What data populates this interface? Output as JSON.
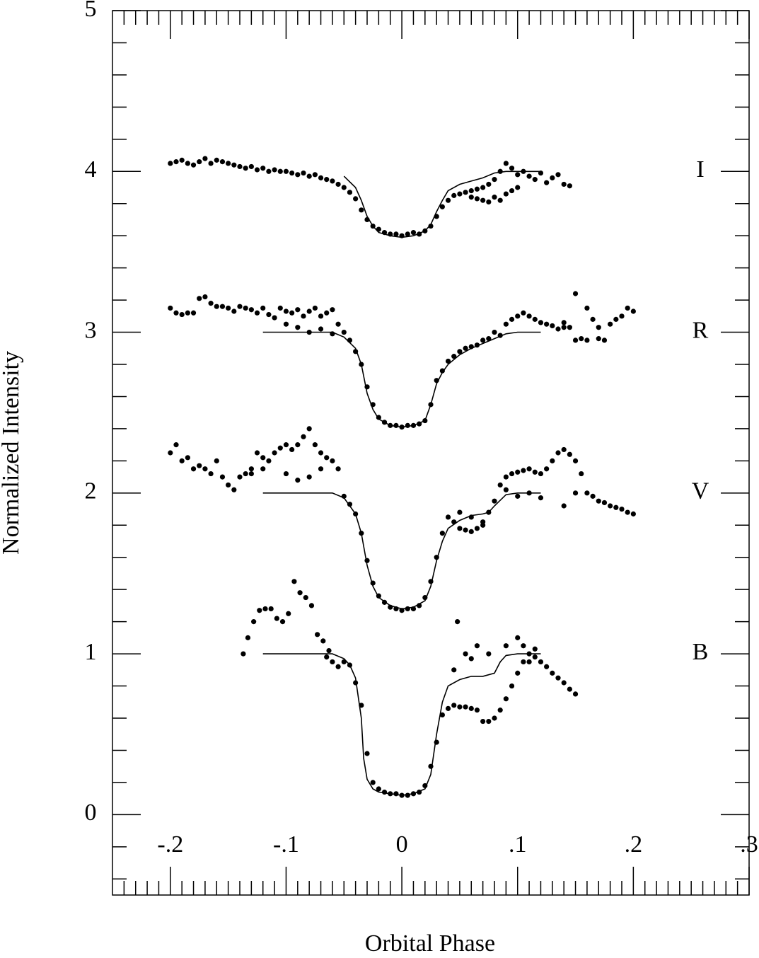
{
  "chart_data": {
    "type": "scatter",
    "xlabel": "Orbital Phase",
    "ylabel": "Normalized Intensity",
    "color": "#000000",
    "xlim": [
      -0.25,
      0.3
    ],
    "ylim": [
      -0.5,
      5
    ],
    "xticks": [
      {
        "value": -0.2,
        "label": "-.2"
      },
      {
        "value": -0.1,
        "label": "-.1"
      },
      0,
      {
        "value": 0.1,
        "label": ".1"
      },
      {
        "value": 0.2,
        "label": ".2"
      },
      {
        "value": 0.3,
        "label": ".3"
      }
    ],
    "yticks": [
      0,
      1,
      2,
      3,
      4,
      5
    ],
    "xminorticks": [
      -0.24,
      -0.23,
      -0.22,
      -0.21,
      -0.19,
      -0.18,
      -0.17,
      -0.16,
      -0.15,
      -0.14,
      -0.13,
      -0.12,
      -0.11,
      -0.09,
      -0.08,
      -0.07,
      -0.06,
      -0.05,
      -0.04,
      -0.03,
      -0.02,
      -0.01,
      0.01,
      0.02,
      0.03,
      0.04,
      0.05,
      0.06,
      0.07,
      0.08,
      0.09,
      0.11,
      0.12,
      0.13,
      0.14,
      0.15,
      0.16,
      0.17,
      0.18,
      0.19,
      0.21,
      0.22,
      0.23,
      0.24,
      0.25,
      0.26,
      0.27,
      0.28,
      0.29
    ],
    "yminorticks": [
      -0.4,
      -0.2,
      0.2,
      0.4,
      0.6,
      0.8,
      1.2,
      1.4,
      1.6,
      1.8,
      2.2,
      2.4,
      2.6,
      2.8,
      3.2,
      3.4,
      3.6,
      3.8,
      4.2,
      4.4,
      4.6,
      4.8
    ],
    "series": [
      {
        "name": "I",
        "x": [
          -0.2,
          -0.195,
          -0.19,
          -0.185,
          -0.18,
          -0.175,
          -0.17,
          -0.165,
          -0.16,
          -0.155,
          -0.15,
          -0.145,
          -0.14,
          -0.135,
          -0.13,
          -0.125,
          -0.12,
          -0.115,
          -0.11,
          -0.105,
          -0.1,
          -0.095,
          -0.09,
          -0.085,
          -0.08,
          -0.075,
          -0.07,
          -0.065,
          -0.06,
          -0.055,
          -0.05,
          -0.045,
          -0.04,
          -0.035,
          -0.03,
          -0.025,
          -0.02,
          -0.015,
          -0.01,
          -0.005,
          0,
          0.005,
          0.01,
          0.015,
          0.02,
          0.025,
          0.03,
          0.035,
          0.04,
          0.045,
          0.05,
          0.055,
          0.06,
          0.065,
          0.07,
          0.075,
          0.08,
          0.085,
          0.09,
          0.095,
          0.1,
          0.105,
          0.11,
          0.115,
          0.12,
          0.125,
          0.13,
          0.135,
          0.14,
          0.145,
          0.06,
          0.065,
          0.07,
          0.075,
          0.08,
          0.085,
          0.09,
          0.095,
          0.1
        ],
        "values": [
          4.05,
          4.06,
          4.07,
          4.05,
          4.04,
          4.06,
          4.08,
          4.05,
          4.07,
          4.06,
          4.05,
          4.04,
          4.03,
          4.02,
          4.03,
          4.01,
          4.02,
          4.0,
          4.01,
          4.0,
          4.0,
          3.99,
          3.98,
          3.99,
          3.97,
          3.98,
          3.96,
          3.95,
          3.94,
          3.92,
          3.9,
          3.87,
          3.83,
          3.76,
          3.7,
          3.66,
          3.64,
          3.62,
          3.61,
          3.61,
          3.6,
          3.61,
          3.62,
          3.61,
          3.63,
          3.66,
          3.72,
          3.78,
          3.82,
          3.85,
          3.86,
          3.87,
          3.88,
          3.89,
          3.9,
          3.92,
          3.95,
          4.0,
          4.05,
          4.02,
          3.98,
          4.0,
          3.97,
          3.95,
          3.99,
          3.93,
          3.96,
          3.98,
          3.92,
          3.91,
          3.84,
          3.83,
          3.82,
          3.81,
          3.84,
          3.82,
          3.86,
          3.88,
          3.9
        ],
        "model": {
          "x": [
            -0.05,
            -0.04,
            -0.035,
            -0.03,
            -0.025,
            -0.02,
            -0.01,
            0,
            0.01,
            0.02,
            0.025,
            0.03,
            0.035,
            0.04,
            0.05,
            0.06,
            0.07,
            0.08,
            0.09,
            0.1,
            0.12
          ],
          "values": [
            3.97,
            3.9,
            3.82,
            3.72,
            3.66,
            3.62,
            3.6,
            3.59,
            3.6,
            3.63,
            3.67,
            3.75,
            3.82,
            3.88,
            3.92,
            3.94,
            3.96,
            3.99,
            4.0,
            4.0,
            4.0
          ]
        }
      },
      {
        "name": "R",
        "x": [
          -0.2,
          -0.195,
          -0.19,
          -0.185,
          -0.18,
          -0.175,
          -0.17,
          -0.165,
          -0.16,
          -0.155,
          -0.15,
          -0.145,
          -0.14,
          -0.135,
          -0.13,
          -0.125,
          -0.12,
          -0.115,
          -0.11,
          -0.105,
          -0.1,
          -0.095,
          -0.09,
          -0.085,
          -0.08,
          -0.075,
          -0.07,
          -0.065,
          -0.06,
          -0.055,
          -0.05,
          -0.045,
          -0.04,
          -0.035,
          -0.03,
          -0.025,
          -0.02,
          -0.015,
          -0.01,
          -0.005,
          0,
          0.005,
          0.01,
          0.015,
          0.02,
          0.025,
          0.03,
          0.035,
          0.04,
          0.045,
          0.05,
          0.055,
          0.06,
          0.065,
          0.07,
          0.075,
          0.08,
          0.085,
          0.09,
          0.095,
          0.1,
          0.105,
          0.11,
          0.115,
          0.12,
          0.125,
          0.13,
          0.135,
          0.14,
          0.145,
          0.15,
          0.155,
          0.16,
          0.165,
          0.17,
          0.175,
          0.18,
          0.185,
          0.19,
          0.195,
          0.2,
          -0.1,
          -0.09,
          -0.08,
          -0.07,
          -0.06,
          0.15,
          0.16,
          0.17,
          0.14
        ],
        "values": [
          3.15,
          3.12,
          3.11,
          3.12,
          3.12,
          3.21,
          3.22,
          3.18,
          3.16,
          3.16,
          3.15,
          3.13,
          3.16,
          3.15,
          3.14,
          3.12,
          3.15,
          3.11,
          3.09,
          3.15,
          3.13,
          3.12,
          3.14,
          3.1,
          3.13,
          3.15,
          3.1,
          3.12,
          3.14,
          3.05,
          3.0,
          2.95,
          2.88,
          2.8,
          2.66,
          2.55,
          2.47,
          2.44,
          2.42,
          2.42,
          2.41,
          2.42,
          2.42,
          2.43,
          2.45,
          2.55,
          2.7,
          2.76,
          2.82,
          2.85,
          2.88,
          2.9,
          2.91,
          2.92,
          2.95,
          2.96,
          3.0,
          2.98,
          3.05,
          3.08,
          3.1,
          3.12,
          3.1,
          3.08,
          3.06,
          3.05,
          3.04,
          3.02,
          3.06,
          3.03,
          3.24,
          2.96,
          3.15,
          3.08,
          3.03,
          2.95,
          3.05,
          3.08,
          3.1,
          3.15,
          3.13,
          3.05,
          3.03,
          3.0,
          3.02,
          2.99,
          2.95,
          2.95,
          2.96,
          3.03
        ],
        "model": {
          "x": [
            -0.12,
            -0.06,
            -0.05,
            -0.04,
            -0.035,
            -0.03,
            -0.025,
            -0.02,
            -0.01,
            0,
            0.01,
            0.02,
            0.025,
            0.03,
            0.035,
            0.04,
            0.05,
            0.06,
            0.07,
            0.08,
            0.09,
            0.1,
            0.12
          ],
          "values": [
            3.0,
            3.0,
            2.97,
            2.9,
            2.8,
            2.62,
            2.52,
            2.46,
            2.42,
            2.41,
            2.42,
            2.45,
            2.55,
            2.68,
            2.75,
            2.8,
            2.86,
            2.9,
            2.93,
            2.96,
            2.99,
            3.0,
            3.0
          ]
        }
      },
      {
        "name": "V",
        "x": [
          -0.2,
          -0.195,
          -0.19,
          -0.185,
          -0.18,
          -0.175,
          -0.17,
          -0.165,
          -0.16,
          -0.155,
          -0.15,
          -0.145,
          -0.14,
          -0.135,
          -0.13,
          -0.125,
          -0.12,
          -0.115,
          -0.11,
          -0.105,
          -0.1,
          -0.095,
          -0.09,
          -0.085,
          -0.08,
          -0.075,
          -0.07,
          -0.065,
          -0.06,
          -0.055,
          -0.05,
          -0.045,
          -0.04,
          -0.035,
          -0.03,
          -0.025,
          -0.02,
          -0.015,
          -0.01,
          -0.005,
          0,
          0.005,
          0.01,
          0.015,
          0.02,
          0.025,
          0.03,
          0.035,
          0.04,
          0.045,
          0.05,
          0.055,
          0.06,
          0.065,
          0.07,
          0.075,
          0.08,
          0.085,
          0.09,
          0.095,
          0.1,
          0.105,
          0.11,
          0.115,
          0.12,
          0.125,
          0.13,
          0.135,
          0.14,
          0.145,
          0.15,
          0.155,
          0.16,
          0.165,
          0.17,
          0.175,
          0.18,
          0.185,
          0.19,
          0.195,
          0.2,
          -0.13,
          -0.12,
          -0.1,
          -0.09,
          -0.08,
          -0.07,
          0.05,
          0.06,
          0.07,
          0.09,
          0.1,
          0.11,
          0.12,
          0.14,
          0.15
        ],
        "values": [
          2.25,
          2.3,
          2.2,
          2.22,
          2.15,
          2.17,
          2.15,
          2.12,
          2.2,
          2.1,
          2.05,
          2.02,
          2.1,
          2.12,
          2.15,
          2.25,
          2.22,
          2.2,
          2.25,
          2.28,
          2.3,
          2.27,
          2.3,
          2.35,
          2.4,
          2.3,
          2.25,
          2.22,
          2.2,
          2.15,
          1.98,
          1.93,
          1.87,
          1.75,
          1.58,
          1.44,
          1.36,
          1.32,
          1.29,
          1.28,
          1.27,
          1.28,
          1.28,
          1.3,
          1.35,
          1.45,
          1.6,
          1.75,
          1.85,
          1.82,
          1.78,
          1.77,
          1.76,
          1.78,
          1.8,
          1.88,
          1.95,
          2.05,
          2.1,
          2.12,
          2.13,
          2.14,
          2.15,
          2.13,
          2.12,
          2.15,
          2.2,
          2.25,
          2.27,
          2.24,
          2.2,
          2.12,
          2.0,
          1.98,
          1.95,
          1.94,
          1.92,
          1.91,
          1.9,
          1.88,
          1.87,
          2.12,
          2.15,
          2.12,
          2.08,
          2.1,
          2.15,
          1.88,
          1.85,
          1.82,
          2.02,
          1.98,
          2.0,
          1.97,
          1.92,
          2.0
        ],
        "model": {
          "x": [
            -0.12,
            -0.06,
            -0.05,
            -0.045,
            -0.04,
            -0.035,
            -0.03,
            -0.025,
            -0.02,
            -0.01,
            0,
            0.01,
            0.02,
            0.025,
            0.03,
            0.035,
            0.04,
            0.05,
            0.06,
            0.07,
            0.075,
            0.08,
            0.09,
            0.1,
            0.12
          ],
          "values": [
            2.0,
            2.0,
            1.97,
            1.92,
            1.87,
            1.75,
            1.55,
            1.42,
            1.35,
            1.3,
            1.28,
            1.29,
            1.33,
            1.42,
            1.58,
            1.7,
            1.78,
            1.83,
            1.86,
            1.87,
            1.88,
            1.92,
            1.99,
            2.0,
            2.0
          ]
        }
      },
      {
        "name": "B",
        "x": [
          -0.137,
          -0.133,
          -0.128,
          -0.123,
          -0.118,
          -0.113,
          -0.108,
          -0.103,
          -0.098,
          -0.093,
          -0.088,
          -0.083,
          -0.078,
          -0.073,
          -0.068,
          -0.063,
          -0.065,
          -0.06,
          -0.055,
          -0.05,
          -0.045,
          -0.04,
          -0.035,
          -0.03,
          -0.025,
          -0.02,
          -0.015,
          -0.01,
          -0.005,
          0,
          0.005,
          0.01,
          0.015,
          0.02,
          0.025,
          0.03,
          0.035,
          0.04,
          0.045,
          0.05,
          0.055,
          0.06,
          0.065,
          0.07,
          0.075,
          0.08,
          0.085,
          0.09,
          0.095,
          0.1,
          0.105,
          0.11,
          0.115,
          0.12,
          0.125,
          0.13,
          0.135,
          0.14,
          0.145,
          0.15,
          0.045,
          0.048,
          0.055,
          0.06,
          0.065,
          0.075,
          0.09,
          0.1,
          0.105,
          0.11,
          0.115
        ],
        "values": [
          1.0,
          1.1,
          1.2,
          1.27,
          1.28,
          1.28,
          1.22,
          1.2,
          1.25,
          1.45,
          1.38,
          1.35,
          1.3,
          1.12,
          1.08,
          1.02,
          0.98,
          0.95,
          0.92,
          0.95,
          0.93,
          0.82,
          0.68,
          0.38,
          0.2,
          0.16,
          0.14,
          0.13,
          0.13,
          0.12,
          0.12,
          0.13,
          0.14,
          0.18,
          0.3,
          0.45,
          0.62,
          0.66,
          0.68,
          0.67,
          0.67,
          0.66,
          0.65,
          0.58,
          0.58,
          0.6,
          0.65,
          0.72,
          0.8,
          0.88,
          0.95,
          1.0,
          0.98,
          0.95,
          0.92,
          0.88,
          0.85,
          0.82,
          0.78,
          0.75,
          0.9,
          1.2,
          1.0,
          0.97,
          1.05,
          1.0,
          1.05,
          1.1,
          1.05,
          0.95,
          1.03
        ],
        "model": {
          "x": [
            -0.12,
            -0.06,
            -0.05,
            -0.045,
            -0.04,
            -0.035,
            -0.033,
            -0.03,
            -0.025,
            -0.02,
            -0.01,
            0,
            0.01,
            0.02,
            0.025,
            0.03,
            0.035,
            0.04,
            0.05,
            0.06,
            0.07,
            0.08,
            0.085,
            0.09,
            0.1,
            0.12
          ],
          "values": [
            1.0,
            1.0,
            0.97,
            0.93,
            0.85,
            0.6,
            0.35,
            0.22,
            0.16,
            0.14,
            0.13,
            0.12,
            0.13,
            0.16,
            0.25,
            0.5,
            0.7,
            0.8,
            0.84,
            0.86,
            0.86,
            0.88,
            0.95,
            0.99,
            1.0,
            1.0
          ]
        }
      }
    ]
  }
}
